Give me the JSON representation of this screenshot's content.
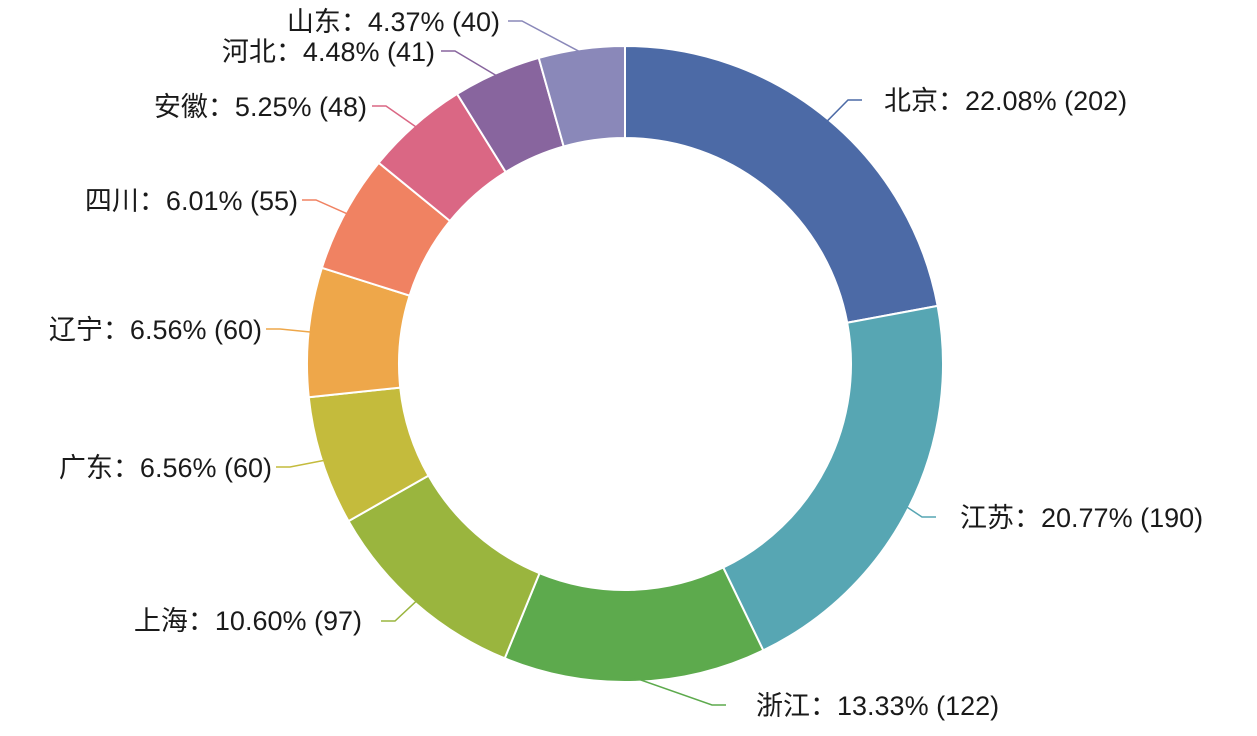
{
  "chart_data": {
    "type": "pie",
    "donut": true,
    "title": "",
    "legend": "none",
    "label_format": "{name}：{percent} ({value})",
    "slices": [
      {
        "name": "北京",
        "value": 202,
        "percent": "22.08%",
        "color": "#4c6aa6"
      },
      {
        "name": "江苏",
        "value": 190,
        "percent": "20.77%",
        "color": "#57a6b3"
      },
      {
        "name": "浙江",
        "value": 122,
        "percent": "13.33%",
        "color": "#5daa4d"
      },
      {
        "name": "上海",
        "value": 97,
        "percent": "10.60%",
        "color": "#9ab53e"
      },
      {
        "name": "广东",
        "value": 60,
        "percent": "6.56%",
        "color": "#c4bb3c"
      },
      {
        "name": "辽宁",
        "value": 60,
        "percent": "6.56%",
        "color": "#eea74a"
      },
      {
        "name": "四川",
        "value": 55,
        "percent": "6.01%",
        "color": "#f08262"
      },
      {
        "name": "安徽",
        "value": 48,
        "percent": "5.25%",
        "color": "#da6784"
      },
      {
        "name": "河北",
        "value": 41,
        "percent": "4.48%",
        "color": "#88659e"
      },
      {
        "name": "山东",
        "value": 40,
        "percent": "4.37%",
        "color": "#8a88b9"
      }
    ]
  }
}
